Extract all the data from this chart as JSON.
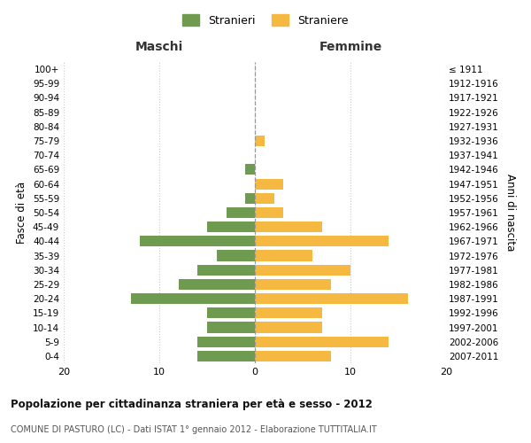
{
  "age_groups": [
    "0-4",
    "5-9",
    "10-14",
    "15-19",
    "20-24",
    "25-29",
    "30-34",
    "35-39",
    "40-44",
    "45-49",
    "50-54",
    "55-59",
    "60-64",
    "65-69",
    "70-74",
    "75-79",
    "80-84",
    "85-89",
    "90-94",
    "95-99",
    "100+"
  ],
  "birth_years": [
    "2007-2011",
    "2002-2006",
    "1997-2001",
    "1992-1996",
    "1987-1991",
    "1982-1986",
    "1977-1981",
    "1972-1976",
    "1967-1971",
    "1962-1966",
    "1957-1961",
    "1952-1956",
    "1947-1951",
    "1942-1946",
    "1937-1941",
    "1932-1936",
    "1927-1931",
    "1922-1926",
    "1917-1921",
    "1912-1916",
    "≤ 1911"
  ],
  "maschi": [
    6,
    6,
    5,
    5,
    13,
    8,
    6,
    4,
    12,
    5,
    3,
    1,
    0,
    1,
    0,
    0,
    0,
    0,
    0,
    0,
    0
  ],
  "femmine": [
    8,
    14,
    7,
    7,
    16,
    8,
    10,
    6,
    14,
    7,
    3,
    2,
    3,
    0,
    0,
    1,
    0,
    0,
    0,
    0,
    0
  ],
  "maschi_color": "#6e9b50",
  "femmine_color": "#f5b942",
  "title": "Popolazione per cittadinanza straniera per età e sesso - 2012",
  "subtitle": "COMUNE DI PASTURO (LC) - Dati ISTAT 1° gennaio 2012 - Elaborazione TUTTITALIA.IT",
  "xlabel_maschi": "Maschi",
  "xlabel_femmine": "Femmine",
  "ylabel_left": "Fasce di età",
  "ylabel_right": "Anni di nascita",
  "legend_maschi": "Stranieri",
  "legend_femmine": "Straniere",
  "xlim": 20,
  "background_color": "#ffffff",
  "grid_color": "#cccccc"
}
